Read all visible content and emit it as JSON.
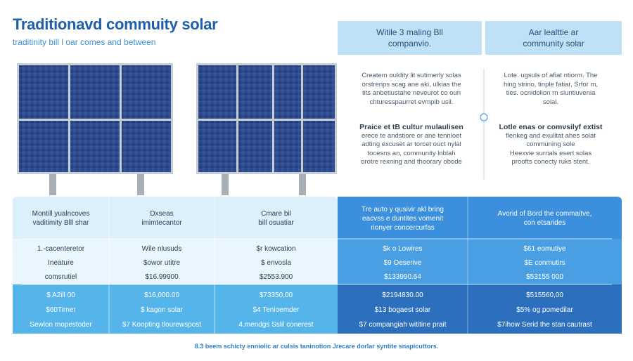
{
  "header": {
    "title": "Traditionavd commuity solar",
    "subtitle": "traditinity bill l oar comes and between"
  },
  "comparison": {
    "left_heading": [
      "Witile 3 maling Bll",
      "companvio."
    ],
    "right_heading": [
      "Aar lealttie ar",
      "community solar"
    ],
    "left_text": [
      [
        "Createm ouldity lit sutimerly solas",
        "orstrerips scag ane aki, ulkias the",
        "tits anbetiustahe neveurot co oun",
        "chturesspaurret evmpib usil."
      ],
      [
        "Praice et tB cultur mulaulisen",
        "erece te andstiore or ane tennloet",
        "adting excuset ar torcet ouct nylal",
        "tocesns an, community lnblah",
        "orotre rexning and thoorary obode"
      ]
    ],
    "right_text": [
      [
        "Lote. ugsuls of afiat ntiorm. The",
        "hing strino, tinple fatiar, Srfor m,",
        "ties. ocnidolion rn siuntiuvenia",
        "solal."
      ],
      [
        "Lotle enas or comvsilyf extist",
        "flenkeg and exulitat ahes solat",
        "communing sole",
        "Heexvie surrials esert solas",
        "proofts conecty ruks stent."
      ]
    ]
  },
  "table": {
    "header": [
      [
        "Montill yualncoves",
        "vaditimity Blll shar"
      ],
      [
        "Dxseas",
        "imimtecantor"
      ],
      [
        "Cmare bil",
        "bill osuatiar"
      ],
      [
        "Tre auto y qusivir akl bring",
        "eacvss e duntites vomenit",
        "rionyer concercurfas"
      ],
      [
        "Avorid of Bord the commaitve,",
        "con etsarides"
      ]
    ],
    "rows": [
      [
        "1.-cacenteretor",
        "Wile nlusuds",
        "$r kowcation",
        "$k o Lowires",
        "$61 eomutiye"
      ],
      [
        "Ineature",
        "$owor utitre",
        "$ envosla",
        "$9 Oeserive",
        "$E conmutirs"
      ],
      [
        "comsrutiel",
        "$16.99900",
        "$2553.900",
        "$133990.64",
        "$53155 000"
      ],
      [
        "$ A2ill 00",
        "$16,000.00",
        "$73350,00",
        "$2194830.00",
        "$515560,00"
      ],
      [
        "$60Tirner",
        "$ kagon solar",
        "$4 Tenioemder",
        "$13 bogaest solar",
        "$5% og pomedilar"
      ],
      [
        "Sewlon mopestoder",
        "$7 Koopting tlourewspost",
        "4.mendgs Sslil conerest",
        "$7 compangiah wititine prait",
        "$7ihow Serid the stan cautrast"
      ]
    ]
  },
  "footer": "8.3 beem schicty enniolic ar culsis taninotion Jrecare dorlar syntite snapicuttors."
}
